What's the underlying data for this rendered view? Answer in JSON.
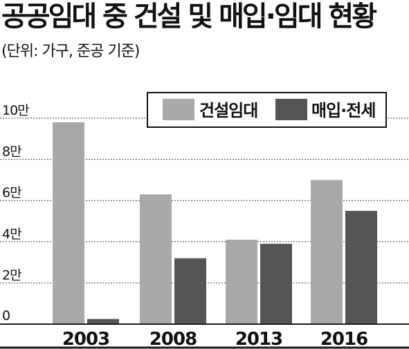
{
  "title": "공공임대 중 건설 및 매입·임대 현황",
  "subtitle": "(단위: 가구, 준공 기준)",
  "colors": {
    "construction": "#a9a9a9",
    "purchase": "#555555",
    "grid": "#444444",
    "frame": "#1a1a1a"
  },
  "chart_data": {
    "type": "bar",
    "categories": [
      "2003",
      "2008",
      "2013",
      "2016"
    ],
    "series": [
      {
        "name": "건설임대",
        "values": [
          98000,
          63000,
          41000,
          70000
        ]
      },
      {
        "name": "매입·전세",
        "values": [
          2500,
          32000,
          39000,
          55000
        ]
      }
    ],
    "ylim": [
      0,
      100000
    ],
    "yticks": [
      0,
      20000,
      40000,
      60000,
      80000,
      100000
    ],
    "ytick_labels": [
      "0",
      "2만",
      "4만",
      "6만",
      "8만",
      "10만"
    ],
    "grid": true,
    "legend_position": "top-right"
  }
}
